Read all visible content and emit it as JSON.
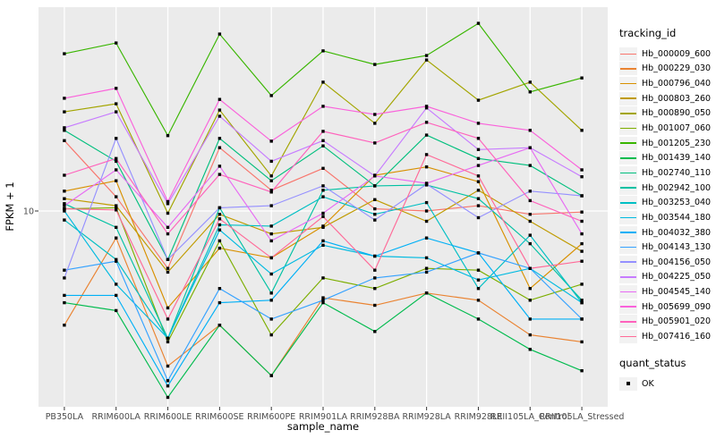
{
  "chart_data": {
    "type": "line",
    "title": "",
    "xlabel": "sample_name",
    "ylabel": "FPKM + 1",
    "y_scale": "log10",
    "y_ticks": [
      {
        "label": "10",
        "value": 10
      }
    ],
    "grid": "ggplot-default",
    "panel_bg": "#EBEBEB",
    "grid_color": "#FFFFFF",
    "point_shape": "filled-black-square",
    "categories": [
      "PB350LA",
      "RRIM600LA",
      "RRIM600LE",
      "RRIM600SE",
      "RRIM600PE",
      "RRIM901LA",
      "RRIM928BA",
      "RRIM928LA",
      "RRIM928LE",
      "RRII105LA_Control",
      "RRII105LA_Stressed"
    ],
    "series": [
      {
        "name": "Hb_000009_600",
        "color": "#F8766D",
        "values": [
          19.1,
          11.4,
          5.9,
          17.9,
          12.1,
          14.8,
          10.2,
          10.0,
          10.5,
          9.7,
          9.9
        ]
      },
      {
        "name": "Hb_000229_030",
        "color": "#EA8331",
        "values": [
          3.5,
          7.8,
          2.4,
          3.5,
          2.2,
          4.5,
          4.2,
          4.7,
          4.4,
          3.2,
          3.0
        ]
      },
      {
        "name": "Hb_000796_040",
        "color": "#D89000",
        "values": [
          12.0,
          13.2,
          4.1,
          7.1,
          6.5,
          8.7,
          13.9,
          15.0,
          13.1,
          4.9,
          7.4
        ]
      },
      {
        "name": "Hb_000803_260",
        "color": "#C09B00",
        "values": [
          11.2,
          10.5,
          5.7,
          9.7,
          8.1,
          8.6,
          11.1,
          9.1,
          12.1,
          9.1,
          6.9
        ]
      },
      {
        "name": "Hb_000890_050",
        "color": "#A3A500",
        "values": [
          24.9,
          26.8,
          9.8,
          25.3,
          13.8,
          32.7,
          22.4,
          40.1,
          27.7,
          32.7,
          21.0
        ]
      },
      {
        "name": "Hb_001007_060",
        "color": "#7CAE00",
        "values": [
          10.2,
          10.3,
          3.0,
          7.6,
          3.2,
          5.4,
          4.9,
          5.9,
          5.8,
          4.4,
          5.1
        ]
      },
      {
        "name": "Hb_001205_230",
        "color": "#39B600",
        "values": [
          42.5,
          46.9,
          20.0,
          50.9,
          28.9,
          43.6,
          38.5,
          41.8,
          56.2,
          29.9,
          34.0
        ]
      },
      {
        "name": "Hb_001439_140",
        "color": "#00BB4E",
        "values": [
          4.3,
          4.0,
          1.8,
          3.5,
          2.2,
          4.3,
          3.3,
          4.7,
          3.7,
          2.8,
          2.3
        ]
      },
      {
        "name": "Hb_002740_110",
        "color": "#00BF7D",
        "values": [
          21.0,
          15.8,
          6.4,
          19.5,
          13.2,
          18.2,
          12.6,
          20.1,
          16.2,
          15.2,
          11.5
        ]
      },
      {
        "name": "Hb_002942_100",
        "color": "#00C1A3",
        "values": [
          10.7,
          8.6,
          3.1,
          10.3,
          4.7,
          12.1,
          12.6,
          12.7,
          11.2,
          7.4,
          4.4
        ]
      },
      {
        "name": "Hb_003253_040",
        "color": "#00BFC4",
        "values": [
          9.2,
          6.4,
          3.1,
          8.8,
          8.7,
          11.4,
          9.7,
          10.8,
          4.9,
          8.0,
          4.3
        ]
      },
      {
        "name": "Hb_003544_180",
        "color": "#00BAE0",
        "values": [
          10.0,
          5.1,
          3.1,
          8.4,
          5.6,
          7.3,
          6.6,
          6.5,
          5.3,
          5.9,
          4.3
        ]
      },
      {
        "name": "Hb_004032_380",
        "color": "#00B0F6",
        "values": [
          4.6,
          4.6,
          2.0,
          4.3,
          4.4,
          7.6,
          6.6,
          7.8,
          6.8,
          3.7,
          3.7
        ]
      },
      {
        "name": "Hb_004143_130",
        "color": "#35A2FF",
        "values": [
          5.8,
          6.3,
          2.1,
          4.9,
          3.7,
          4.4,
          5.4,
          5.7,
          6.8,
          5.9,
          3.7
        ]
      },
      {
        "name": "Hb_004156_050",
        "color": "#9590FF",
        "values": [
          5.4,
          19.5,
          6.4,
          10.3,
          10.5,
          12.6,
          9.2,
          12.8,
          9.4,
          12.0,
          11.5
        ]
      },
      {
        "name": "Hb_004225_050",
        "color": "#C77CFF",
        "values": [
          21.5,
          24.9,
          10.7,
          23.9,
          15.8,
          19.1,
          13.8,
          25.8,
          17.6,
          17.9,
          13.7
        ]
      },
      {
        "name": "Hb_004545_140",
        "color": "#E76BF3",
        "values": [
          10.5,
          14.6,
          8.6,
          15.1,
          7.6,
          9.8,
          13.8,
          12.9,
          15.2,
          17.9,
          8.1
        ]
      },
      {
        "name": "Hb_005699_090",
        "color": "#FA62DB",
        "values": [
          28.2,
          30.9,
          10.9,
          27.9,
          19.0,
          26.2,
          24.3,
          26.2,
          22.4,
          21.0,
          14.6
        ]
      },
      {
        "name": "Hb_005901_020",
        "color": "#FF62BC",
        "values": [
          13.9,
          16.2,
          8.1,
          14.0,
          11.9,
          20.8,
          18.7,
          22.6,
          19.5,
          11.0,
          9.1
        ]
      },
      {
        "name": "Hb_007416_160",
        "color": "#FF6A98",
        "values": [
          10.2,
          10.1,
          3.7,
          9.3,
          6.5,
          9.5,
          5.8,
          16.8,
          13.8,
          5.9,
          6.3
        ]
      }
    ]
  },
  "legend": {
    "tracking_title": "tracking_id",
    "quant_title": "quant_status",
    "quant_items": [
      {
        "label": "OK"
      }
    ]
  }
}
